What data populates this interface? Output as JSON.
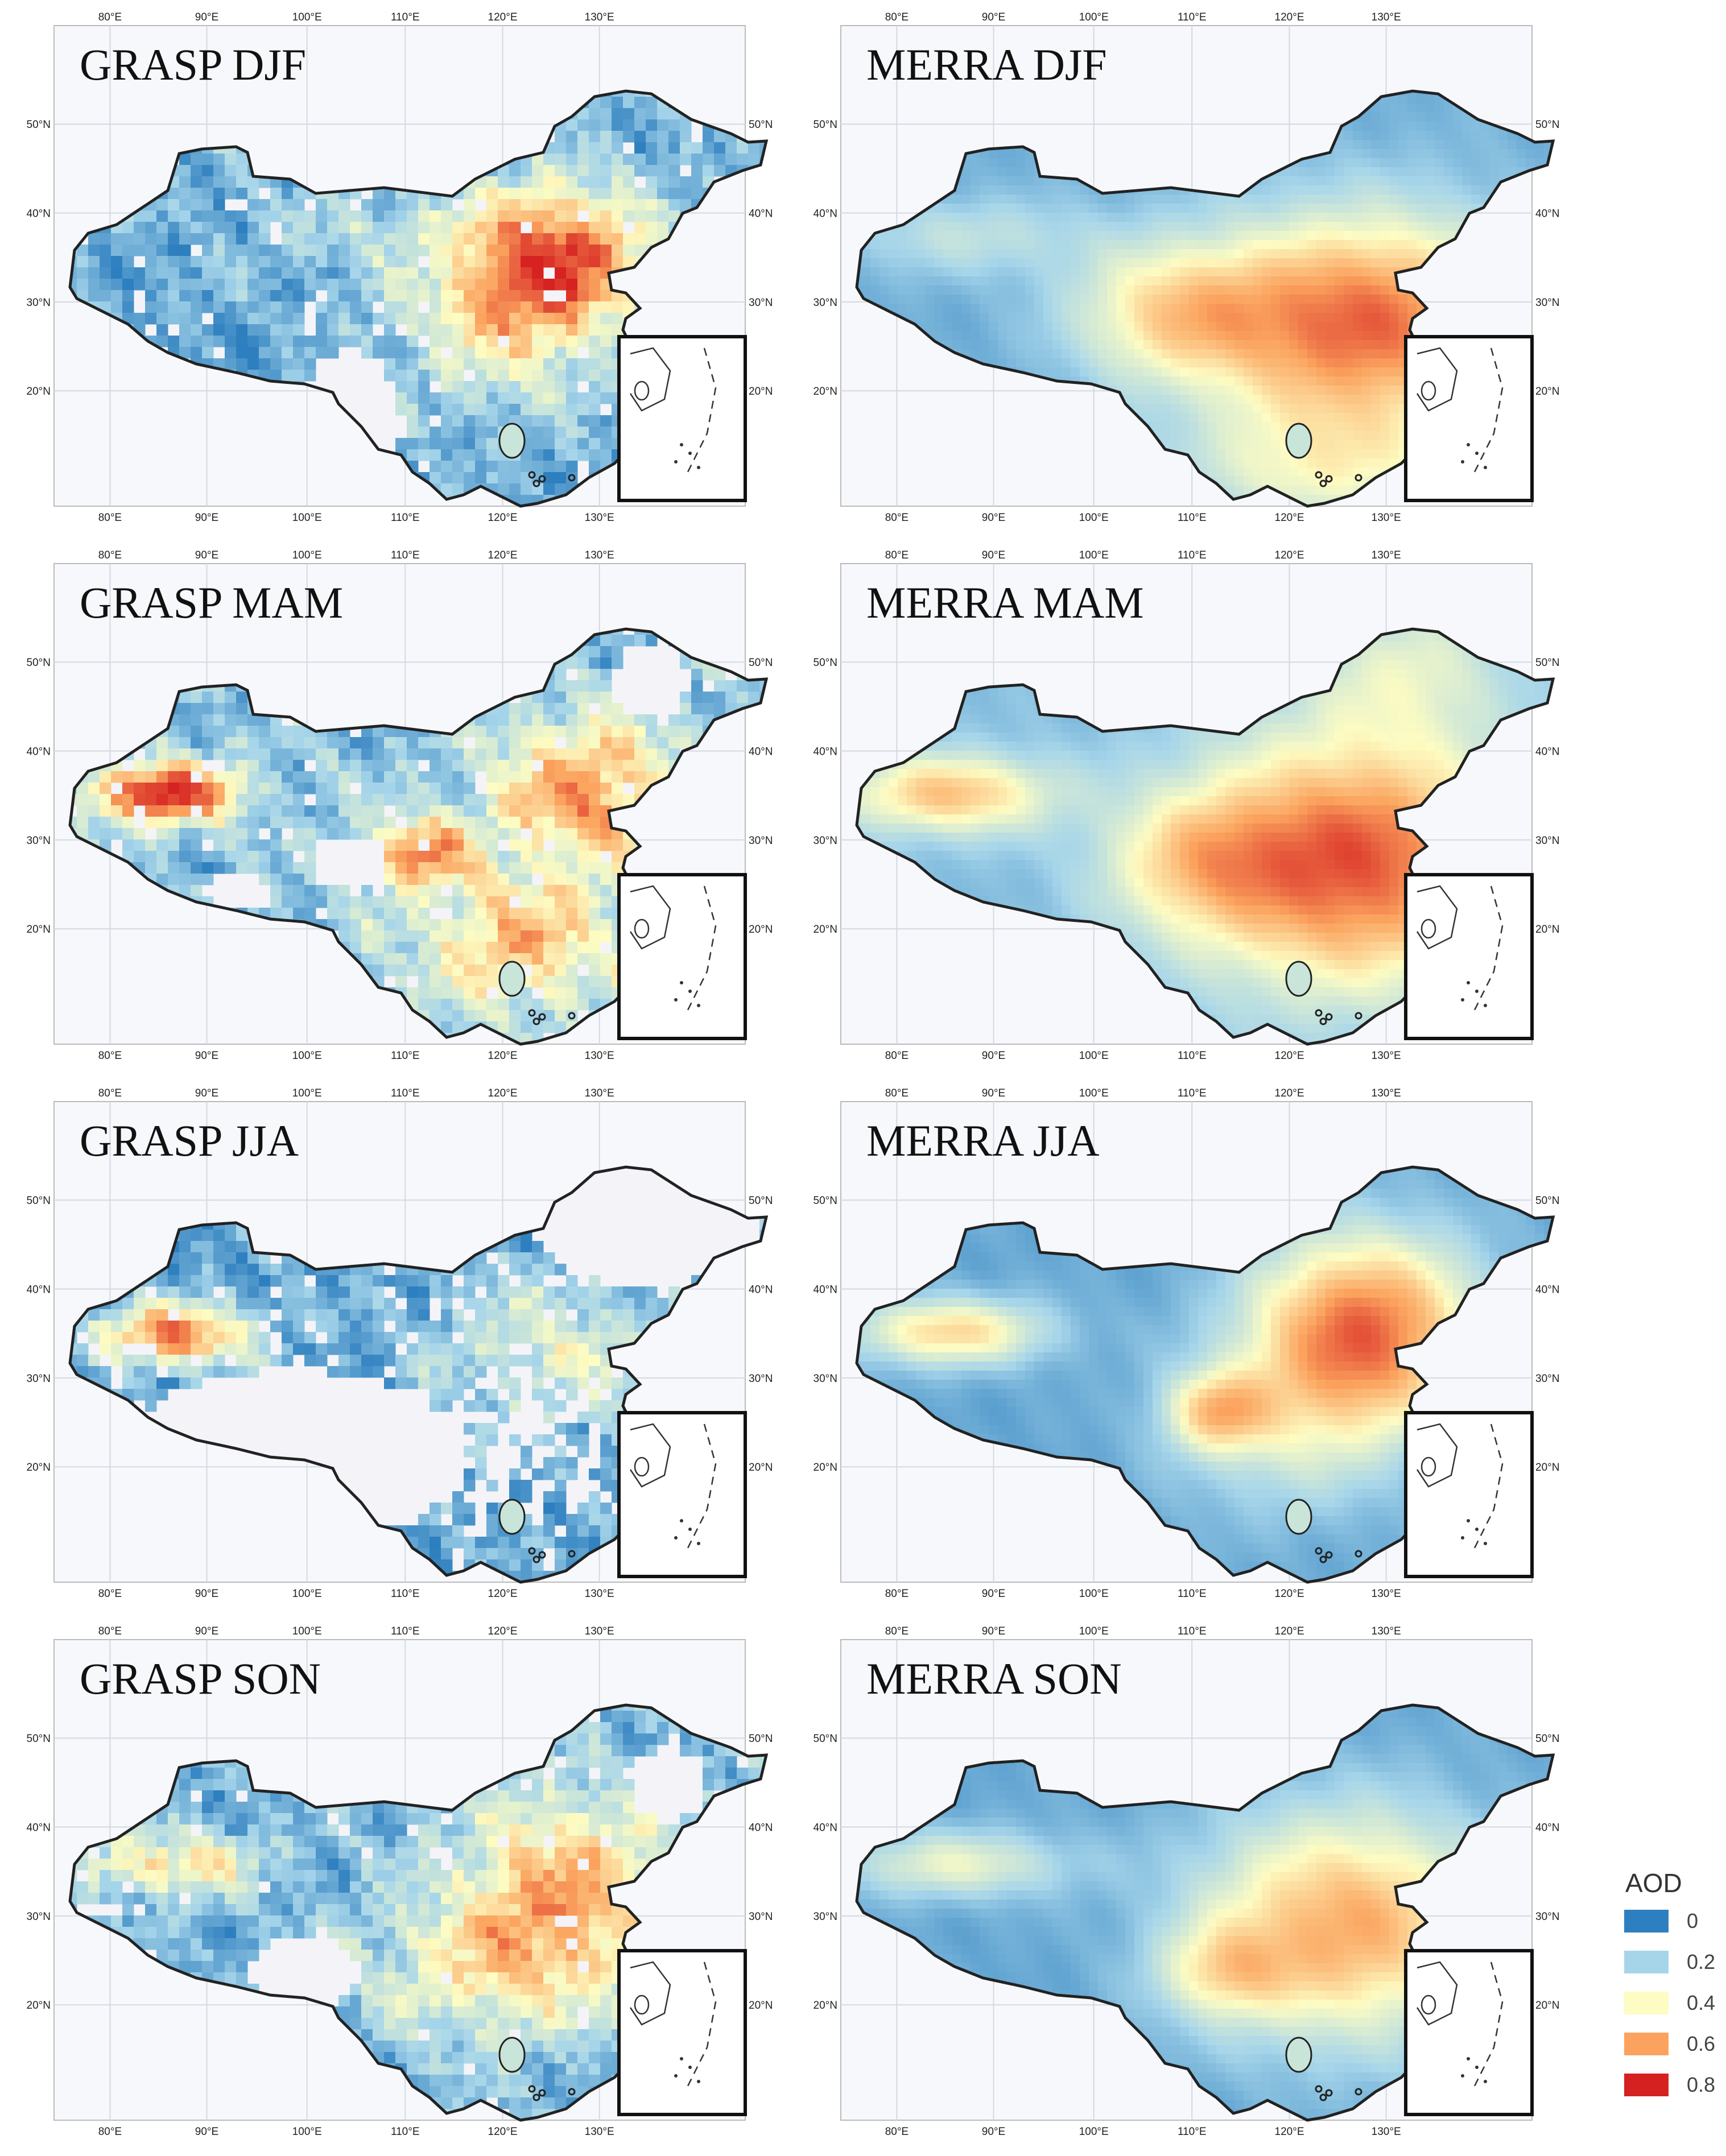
{
  "panels": [
    {
      "title": "GRASP DJF",
      "pattern": "grasp_djf"
    },
    {
      "title": "MERRA DJF",
      "pattern": "merra_djf"
    },
    {
      "title": "GRASP MAM",
      "pattern": "grasp_mam"
    },
    {
      "title": "MERRA MAM",
      "pattern": "merra_mam"
    },
    {
      "title": "GRASP JJA",
      "pattern": "grasp_jja"
    },
    {
      "title": "MERRA JJA",
      "pattern": "merra_jja"
    },
    {
      "title": "GRASP SON",
      "pattern": "grasp_son"
    },
    {
      "title": "MERRA SON",
      "pattern": "merra_son"
    }
  ],
  "lon_ticks": [
    "80°E",
    "90°E",
    "100°E",
    "110°E",
    "120°E",
    "130°E"
  ],
  "lat_ticks": [
    "50°N",
    "40°N",
    "30°N",
    "20°N"
  ],
  "legend": {
    "title": "AOD",
    "items": [
      {
        "label": "0",
        "color": "#2e7fbf"
      },
      {
        "label": "0.2",
        "color": "#a6d5ea"
      },
      {
        "label": "0.4",
        "color": "#fdfcc2"
      },
      {
        "label": "0.6",
        "color": "#fba35e"
      },
      {
        "label": "0.8",
        "color": "#d62121"
      }
    ]
  },
  "colors": {
    "background": "#f7f8fb",
    "gridline": "#d4d8e2",
    "border": "#222222",
    "missing": "#f4f4f8"
  }
}
